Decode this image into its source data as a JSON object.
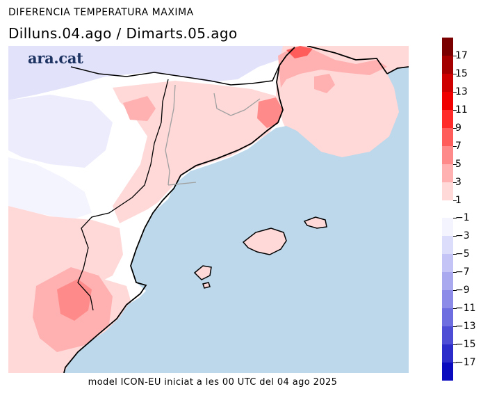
{
  "header": {
    "title": "DIFERENCIA TEMPERATURA MAXIMA",
    "subtitle": "Dilluns.04.ago / Dimarts.05.ago"
  },
  "logo": {
    "text": "ara.cat",
    "color": "#1d3361"
  },
  "footer": {
    "text": "model ICON-EU iniciat a les 00 UTC del 04 ago 2025"
  },
  "map": {
    "sea_color": "#bcd8ea",
    "coast_color": "#000000",
    "border_color": "#a0a0a0"
  },
  "legend": {
    "positive": [
      {
        "label": "17",
        "color": "#7a0000"
      },
      {
        "label": "15",
        "color": "#a40000"
      },
      {
        "label": "13",
        "color": "#cf0000"
      },
      {
        "label": "11",
        "color": "#f10000"
      },
      {
        "label": "9",
        "color": "#ff2a2a"
      },
      {
        "label": "7",
        "color": "#ff5c5c"
      },
      {
        "label": "5",
        "color": "#ff8a8a"
      },
      {
        "label": "3",
        "color": "#ffb0b0"
      },
      {
        "label": "1",
        "color": "#ffd8d8"
      }
    ],
    "negative": [
      {
        "label": "−1",
        "color": "#f4f4ff"
      },
      {
        "label": "−3",
        "color": "#dcdcfb"
      },
      {
        "label": "−5",
        "color": "#c4c4f6"
      },
      {
        "label": "−7",
        "color": "#a9a9f0"
      },
      {
        "label": "−9",
        "color": "#8c8ce8"
      },
      {
        "label": "−11",
        "color": "#6e6ee0"
      },
      {
        "label": "−13",
        "color": "#4d4dd6"
      },
      {
        "label": "−15",
        "color": "#2c2cca"
      },
      {
        "label": "−17",
        "color": "#0a0abf"
      }
    ]
  }
}
